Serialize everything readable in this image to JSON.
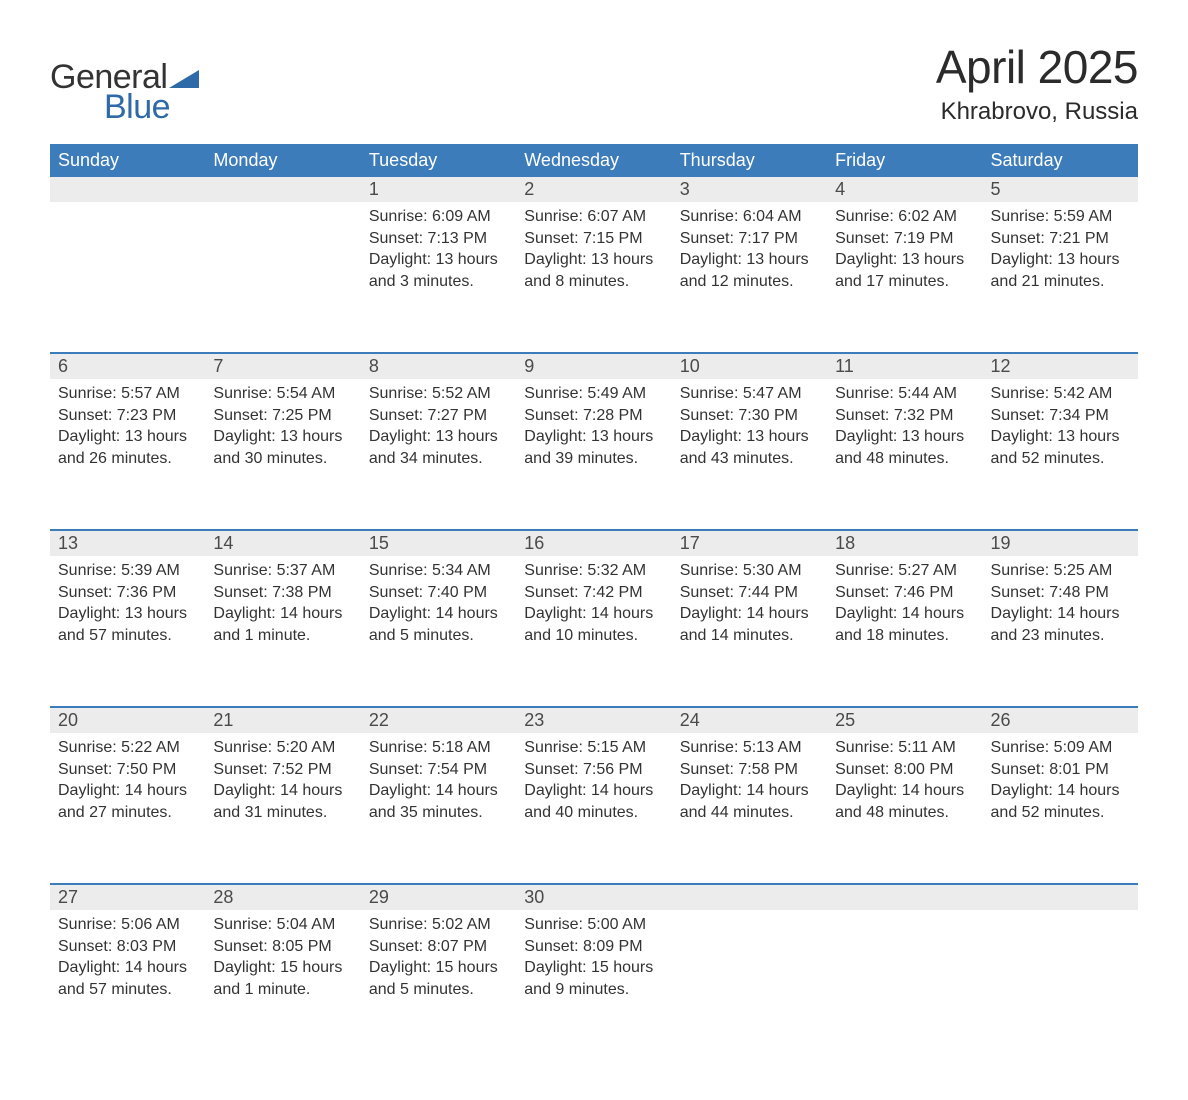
{
  "brand": {
    "top": "General",
    "bottom": "Blue",
    "accent_color": "#2f6aa8"
  },
  "title": "April 2025",
  "location": "Khrabrovo, Russia",
  "colors": {
    "header_bg": "#3d7cba",
    "header_text": "#ffffff",
    "daynum_bg": "#ececec",
    "row_divider": "#3d7cba",
    "body_text": "#333333"
  },
  "weekdays": [
    "Sunday",
    "Monday",
    "Tuesday",
    "Wednesday",
    "Thursday",
    "Friday",
    "Saturday"
  ],
  "weeks": [
    [
      null,
      null,
      {
        "n": "1",
        "sr": "Sunrise: 6:09 AM",
        "ss": "Sunset: 7:13 PM",
        "d1": "Daylight: 13 hours",
        "d2": "and 3 minutes."
      },
      {
        "n": "2",
        "sr": "Sunrise: 6:07 AM",
        "ss": "Sunset: 7:15 PM",
        "d1": "Daylight: 13 hours",
        "d2": "and 8 minutes."
      },
      {
        "n": "3",
        "sr": "Sunrise: 6:04 AM",
        "ss": "Sunset: 7:17 PM",
        "d1": "Daylight: 13 hours",
        "d2": "and 12 minutes."
      },
      {
        "n": "4",
        "sr": "Sunrise: 6:02 AM",
        "ss": "Sunset: 7:19 PM",
        "d1": "Daylight: 13 hours",
        "d2": "and 17 minutes."
      },
      {
        "n": "5",
        "sr": "Sunrise: 5:59 AM",
        "ss": "Sunset: 7:21 PM",
        "d1": "Daylight: 13 hours",
        "d2": "and 21 minutes."
      }
    ],
    [
      {
        "n": "6",
        "sr": "Sunrise: 5:57 AM",
        "ss": "Sunset: 7:23 PM",
        "d1": "Daylight: 13 hours",
        "d2": "and 26 minutes."
      },
      {
        "n": "7",
        "sr": "Sunrise: 5:54 AM",
        "ss": "Sunset: 7:25 PM",
        "d1": "Daylight: 13 hours",
        "d2": "and 30 minutes."
      },
      {
        "n": "8",
        "sr": "Sunrise: 5:52 AM",
        "ss": "Sunset: 7:27 PM",
        "d1": "Daylight: 13 hours",
        "d2": "and 34 minutes."
      },
      {
        "n": "9",
        "sr": "Sunrise: 5:49 AM",
        "ss": "Sunset: 7:28 PM",
        "d1": "Daylight: 13 hours",
        "d2": "and 39 minutes."
      },
      {
        "n": "10",
        "sr": "Sunrise: 5:47 AM",
        "ss": "Sunset: 7:30 PM",
        "d1": "Daylight: 13 hours",
        "d2": "and 43 minutes."
      },
      {
        "n": "11",
        "sr": "Sunrise: 5:44 AM",
        "ss": "Sunset: 7:32 PM",
        "d1": "Daylight: 13 hours",
        "d2": "and 48 minutes."
      },
      {
        "n": "12",
        "sr": "Sunrise: 5:42 AM",
        "ss": "Sunset: 7:34 PM",
        "d1": "Daylight: 13 hours",
        "d2": "and 52 minutes."
      }
    ],
    [
      {
        "n": "13",
        "sr": "Sunrise: 5:39 AM",
        "ss": "Sunset: 7:36 PM",
        "d1": "Daylight: 13 hours",
        "d2": "and 57 minutes."
      },
      {
        "n": "14",
        "sr": "Sunrise: 5:37 AM",
        "ss": "Sunset: 7:38 PM",
        "d1": "Daylight: 14 hours",
        "d2": "and 1 minute."
      },
      {
        "n": "15",
        "sr": "Sunrise: 5:34 AM",
        "ss": "Sunset: 7:40 PM",
        "d1": "Daylight: 14 hours",
        "d2": "and 5 minutes."
      },
      {
        "n": "16",
        "sr": "Sunrise: 5:32 AM",
        "ss": "Sunset: 7:42 PM",
        "d1": "Daylight: 14 hours",
        "d2": "and 10 minutes."
      },
      {
        "n": "17",
        "sr": "Sunrise: 5:30 AM",
        "ss": "Sunset: 7:44 PM",
        "d1": "Daylight: 14 hours",
        "d2": "and 14 minutes."
      },
      {
        "n": "18",
        "sr": "Sunrise: 5:27 AM",
        "ss": "Sunset: 7:46 PM",
        "d1": "Daylight: 14 hours",
        "d2": "and 18 minutes."
      },
      {
        "n": "19",
        "sr": "Sunrise: 5:25 AM",
        "ss": "Sunset: 7:48 PM",
        "d1": "Daylight: 14 hours",
        "d2": "and 23 minutes."
      }
    ],
    [
      {
        "n": "20",
        "sr": "Sunrise: 5:22 AM",
        "ss": "Sunset: 7:50 PM",
        "d1": "Daylight: 14 hours",
        "d2": "and 27 minutes."
      },
      {
        "n": "21",
        "sr": "Sunrise: 5:20 AM",
        "ss": "Sunset: 7:52 PM",
        "d1": "Daylight: 14 hours",
        "d2": "and 31 minutes."
      },
      {
        "n": "22",
        "sr": "Sunrise: 5:18 AM",
        "ss": "Sunset: 7:54 PM",
        "d1": "Daylight: 14 hours",
        "d2": "and 35 minutes."
      },
      {
        "n": "23",
        "sr": "Sunrise: 5:15 AM",
        "ss": "Sunset: 7:56 PM",
        "d1": "Daylight: 14 hours",
        "d2": "and 40 minutes."
      },
      {
        "n": "24",
        "sr": "Sunrise: 5:13 AM",
        "ss": "Sunset: 7:58 PM",
        "d1": "Daylight: 14 hours",
        "d2": "and 44 minutes."
      },
      {
        "n": "25",
        "sr": "Sunrise: 5:11 AM",
        "ss": "Sunset: 8:00 PM",
        "d1": "Daylight: 14 hours",
        "d2": "and 48 minutes."
      },
      {
        "n": "26",
        "sr": "Sunrise: 5:09 AM",
        "ss": "Sunset: 8:01 PM",
        "d1": "Daylight: 14 hours",
        "d2": "and 52 minutes."
      }
    ],
    [
      {
        "n": "27",
        "sr": "Sunrise: 5:06 AM",
        "ss": "Sunset: 8:03 PM",
        "d1": "Daylight: 14 hours",
        "d2": "and 57 minutes."
      },
      {
        "n": "28",
        "sr": "Sunrise: 5:04 AM",
        "ss": "Sunset: 8:05 PM",
        "d1": "Daylight: 15 hours",
        "d2": "and 1 minute."
      },
      {
        "n": "29",
        "sr": "Sunrise: 5:02 AM",
        "ss": "Sunset: 8:07 PM",
        "d1": "Daylight: 15 hours",
        "d2": "and 5 minutes."
      },
      {
        "n": "30",
        "sr": "Sunrise: 5:00 AM",
        "ss": "Sunset: 8:09 PM",
        "d1": "Daylight: 15 hours",
        "d2": "and 9 minutes."
      },
      null,
      null,
      null
    ]
  ]
}
